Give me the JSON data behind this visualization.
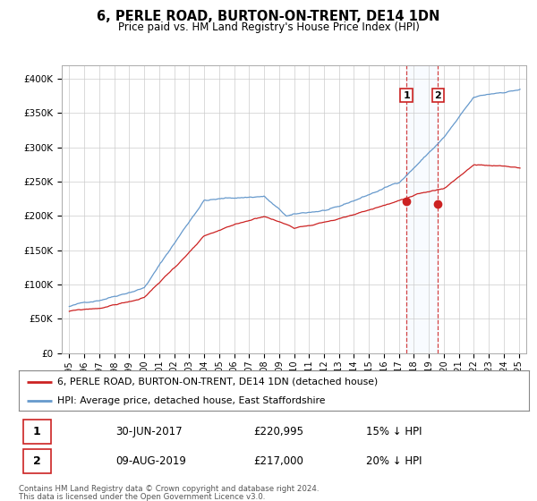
{
  "title": "6, PERLE ROAD, BURTON-ON-TRENT, DE14 1DN",
  "subtitle": "Price paid vs. HM Land Registry's House Price Index (HPI)",
  "legend_line1": "6, PERLE ROAD, BURTON-ON-TRENT, DE14 1DN (detached house)",
  "legend_line2": "HPI: Average price, detached house, East Staffordshire",
  "annotation1_date": "30-JUN-2017",
  "annotation1_price": "£220,995",
  "annotation1_pct": "15% ↓ HPI",
  "annotation1_year": 2017.5,
  "annotation1_value": 220995,
  "annotation2_date": "09-AUG-2019",
  "annotation2_price": "£217,000",
  "annotation2_pct": "20% ↓ HPI",
  "annotation2_year": 2019.6,
  "annotation2_value": 217000,
  "footer_line1": "Contains HM Land Registry data © Crown copyright and database right 2024.",
  "footer_line2": "This data is licensed under the Open Government Licence v3.0.",
  "hpi_color": "#6699cc",
  "price_color": "#cc2222",
  "background_color": "#ffffff",
  "grid_color": "#cccccc",
  "shade_color": "#ddeeff",
  "ylim_min": 0,
  "ylim_max": 420000,
  "xlim_min": 1994.5,
  "xlim_max": 2025.5,
  "hpi_seed": 42,
  "price_seed": 99
}
